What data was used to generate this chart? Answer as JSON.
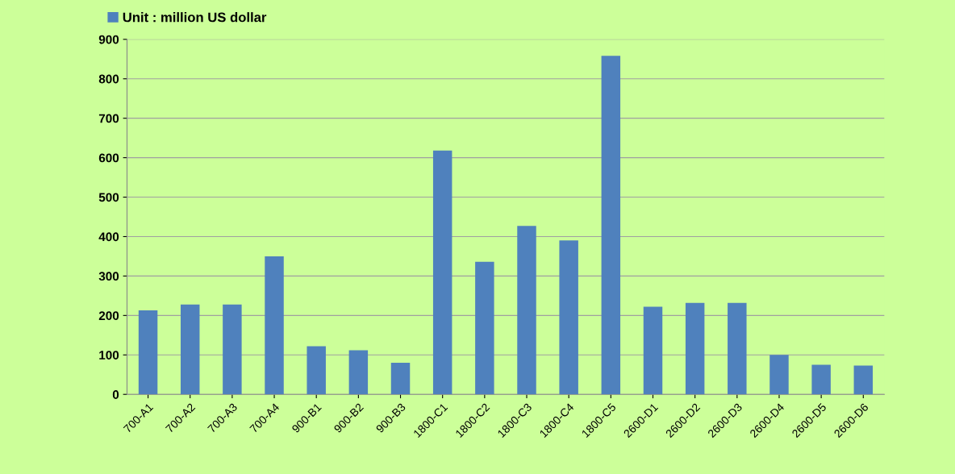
{
  "chart_data": {
    "type": "bar",
    "categories": [
      "700-A1",
      "700-A2",
      "700-A3",
      "700-A4",
      "900-B1",
      "900-B2",
      "900-B3",
      "1800-C1",
      "1800-C2",
      "1800-C3",
      "1800-C4",
      "1800-C5",
      "2600-D1",
      "2600-D2",
      "2600-D3",
      "2600-D4",
      "2600-D5",
      "2600-D6"
    ],
    "series": [
      {
        "name": "Unit : million US dollar",
        "color": "#4f81bd",
        "values": [
          213,
          228,
          228,
          350,
          122,
          112,
          80,
          618,
          336,
          427,
          390,
          858,
          222,
          232,
          232,
          100,
          75,
          73
        ]
      }
    ],
    "ylim": [
      0,
      900
    ],
    "yticks": [
      0,
      100,
      200,
      300,
      400,
      500,
      600,
      700,
      800,
      900
    ],
    "grid": "y",
    "legend": "top left"
  }
}
